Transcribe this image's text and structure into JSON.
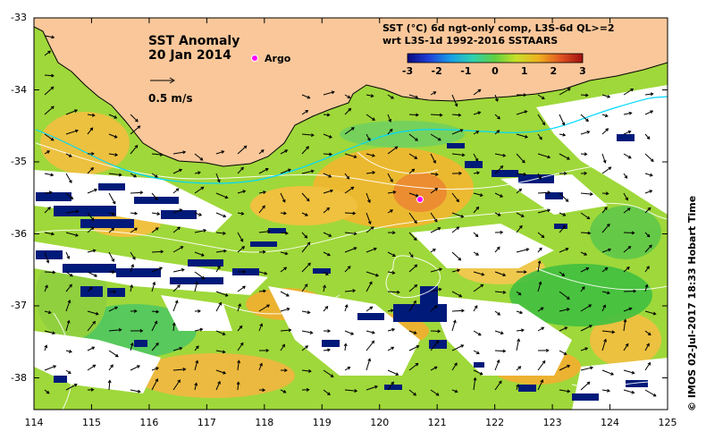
{
  "map": {
    "title": "SST Anomaly",
    "date": "20 Jan 2014",
    "scale_label": "0.5 m/s",
    "argo_label": "Argo",
    "colorbar_title_1": "SST (°C) 6d ngt-only comp, L3S-6d QL>=2",
    "colorbar_title_2": "wrt L3S-1d 1992-2016 SSTAARS",
    "colorbar_ticks": [
      "-3",
      "-2",
      "-1",
      "0",
      "1",
      "2",
      "3"
    ],
    "lat_ticks": [
      "-33",
      "-34",
      "-35",
      "-36",
      "-37",
      "-38"
    ],
    "lon_ticks": [
      "114",
      "115",
      "116",
      "117",
      "118",
      "119",
      "120",
      "121",
      "122",
      "123",
      "124",
      "125"
    ],
    "credit": "© IMOS 02-Jul-2017 18:33 Hobart Time",
    "colors": {
      "land": "#f9c79a",
      "ocean_bg": "#9fd83a",
      "no_data": "#ffffff",
      "argo": "#ff00ff"
    }
  }
}
